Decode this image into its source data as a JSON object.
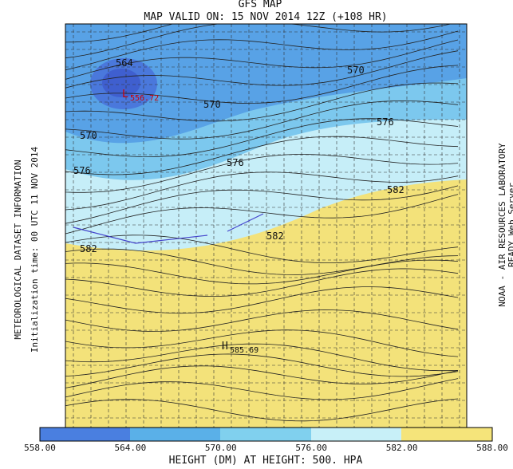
{
  "header": {
    "title": "GFS MAP",
    "subtitle": "MAP VALID ON: 15 NOV 2014 12Z (+108 HR)"
  },
  "left_labels": [
    "METEOROLOGICAL DATASET INFORMATION",
    "Initialization time: 00 UTC 11 NOV 2014"
  ],
  "right_labels": [
    "NOAA - AIR RESOURCES LABORATORY",
    "READY Web Server"
  ],
  "map": {
    "contour_labels": [
      "564",
      "570",
      "570",
      "570",
      "576",
      "576",
      "576",
      "582",
      "582",
      "582"
    ],
    "low": {
      "symbol": "L",
      "value": "556.72"
    },
    "high": {
      "symbol": "H",
      "value": "585.69"
    }
  },
  "colorbar": {
    "labels": [
      "558.00",
      "564.00",
      "570.00",
      "576.00",
      "582.00",
      "588.00"
    ],
    "caption": "HEIGHT (DM) AT HEIGHT: 500. HPA"
  }
}
